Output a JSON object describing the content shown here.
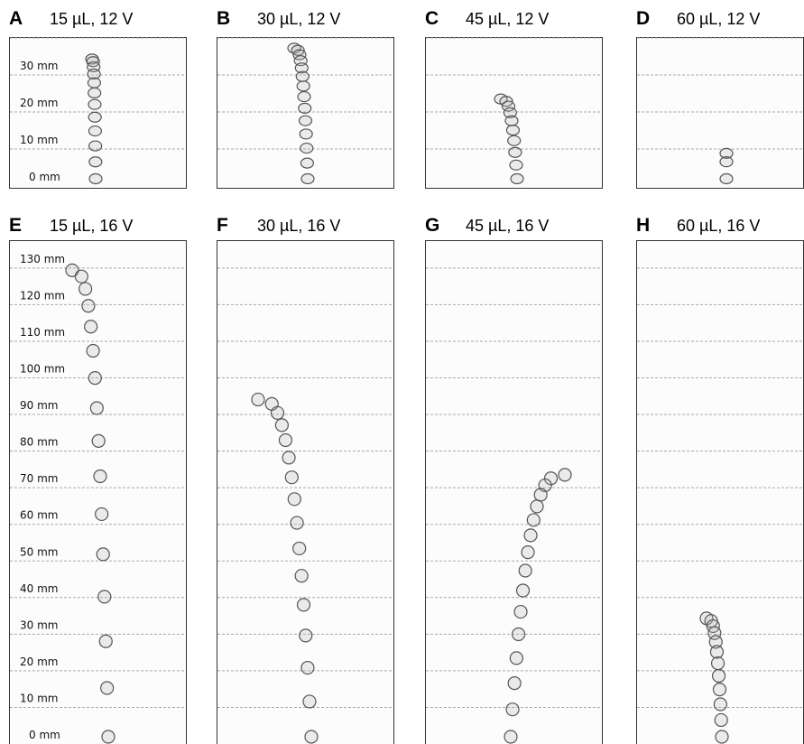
{
  "panels": [
    {
      "letter": "A",
      "title": "15 µL, 12 V",
      "scale_labels": [
        "30 mm",
        "20 mm",
        "10 mm",
        "0 mm"
      ]
    },
    {
      "letter": "B",
      "title": "30 µL, 12 V"
    },
    {
      "letter": "C",
      "title": "45 µL, 12 V"
    },
    {
      "letter": "D",
      "title": "60 µL, 12 V"
    },
    {
      "letter": "E",
      "title": "15 µL, 16 V",
      "scale_labels": [
        "130 mm",
        "120 mm",
        "110 mm",
        "100 mm",
        "90 mm",
        "80 mm",
        "70 mm",
        "60 mm",
        "50 mm",
        "40 mm",
        "30 mm",
        "20 mm",
        "10 mm",
        "0 mm"
      ]
    },
    {
      "letter": "F",
      "title": "30 µL, 16 V"
    },
    {
      "letter": "G",
      "title": "45 µL, 16 V"
    },
    {
      "letter": "H",
      "title": "60 µL, 16 V"
    }
  ]
}
